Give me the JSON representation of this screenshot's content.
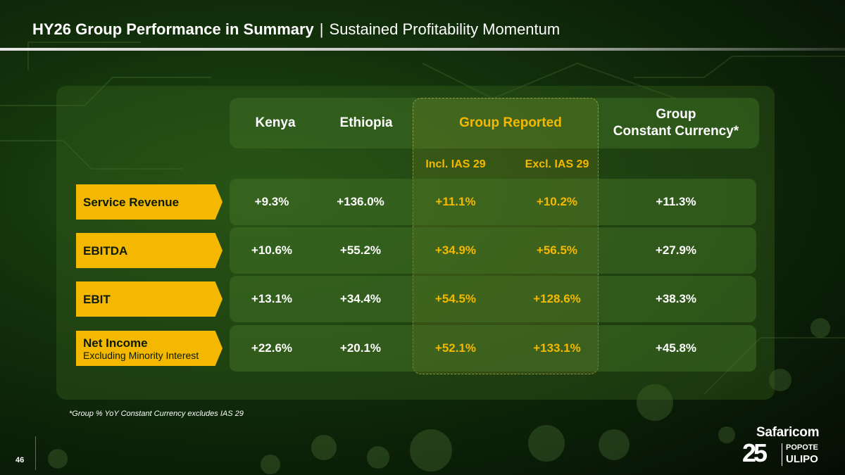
{
  "header": {
    "title": "HY26 Group Performance in Summary",
    "separator": "|",
    "subtitle": "Sustained Profitability Momentum"
  },
  "columns": {
    "kenya": "Kenya",
    "ethiopia": "Ethiopia",
    "group_reported": "Group Reported",
    "group_cc_line1": "Group",
    "group_cc_line2": "Constant Currency*",
    "incl_ias": "Incl. IAS 29",
    "excl_ias": "Excl. IAS 29"
  },
  "rows": [
    {
      "label": "Service Revenue",
      "sublabel": "",
      "kenya": "+9.3%",
      "ethiopia": "+136.0%",
      "incl": "+11.1%",
      "excl": "+10.2%",
      "cc": "+11.3%"
    },
    {
      "label": "EBITDA",
      "sublabel": "",
      "kenya": "+10.6%",
      "ethiopia": "+55.2%",
      "incl": "+34.9%",
      "excl": "+56.5%",
      "cc": "+27.9%"
    },
    {
      "label": "EBIT",
      "sublabel": "",
      "kenya": "+13.1%",
      "ethiopia": "+34.4%",
      "incl": "+54.5%",
      "excl": "+128.6%",
      "cc": "+38.3%"
    },
    {
      "label": "Net Income",
      "sublabel": "Excluding Minority Interest",
      "kenya": "+22.6%",
      "ethiopia": "+20.1%",
      "incl": "+52.1%",
      "excl": "+133.1%",
      "cc": "+45.8%"
    }
  ],
  "footnote": "*Group % YoY Constant Currency excludes IAS 29",
  "page_number": "46",
  "logo": {
    "brand": "Safaricom",
    "anniversary": "25",
    "tagline_1": "POPOTE",
    "tagline_2": "ULIPO"
  },
  "colors": {
    "accent_gold": "#f5b800",
    "background_green": "#12300b"
  }
}
